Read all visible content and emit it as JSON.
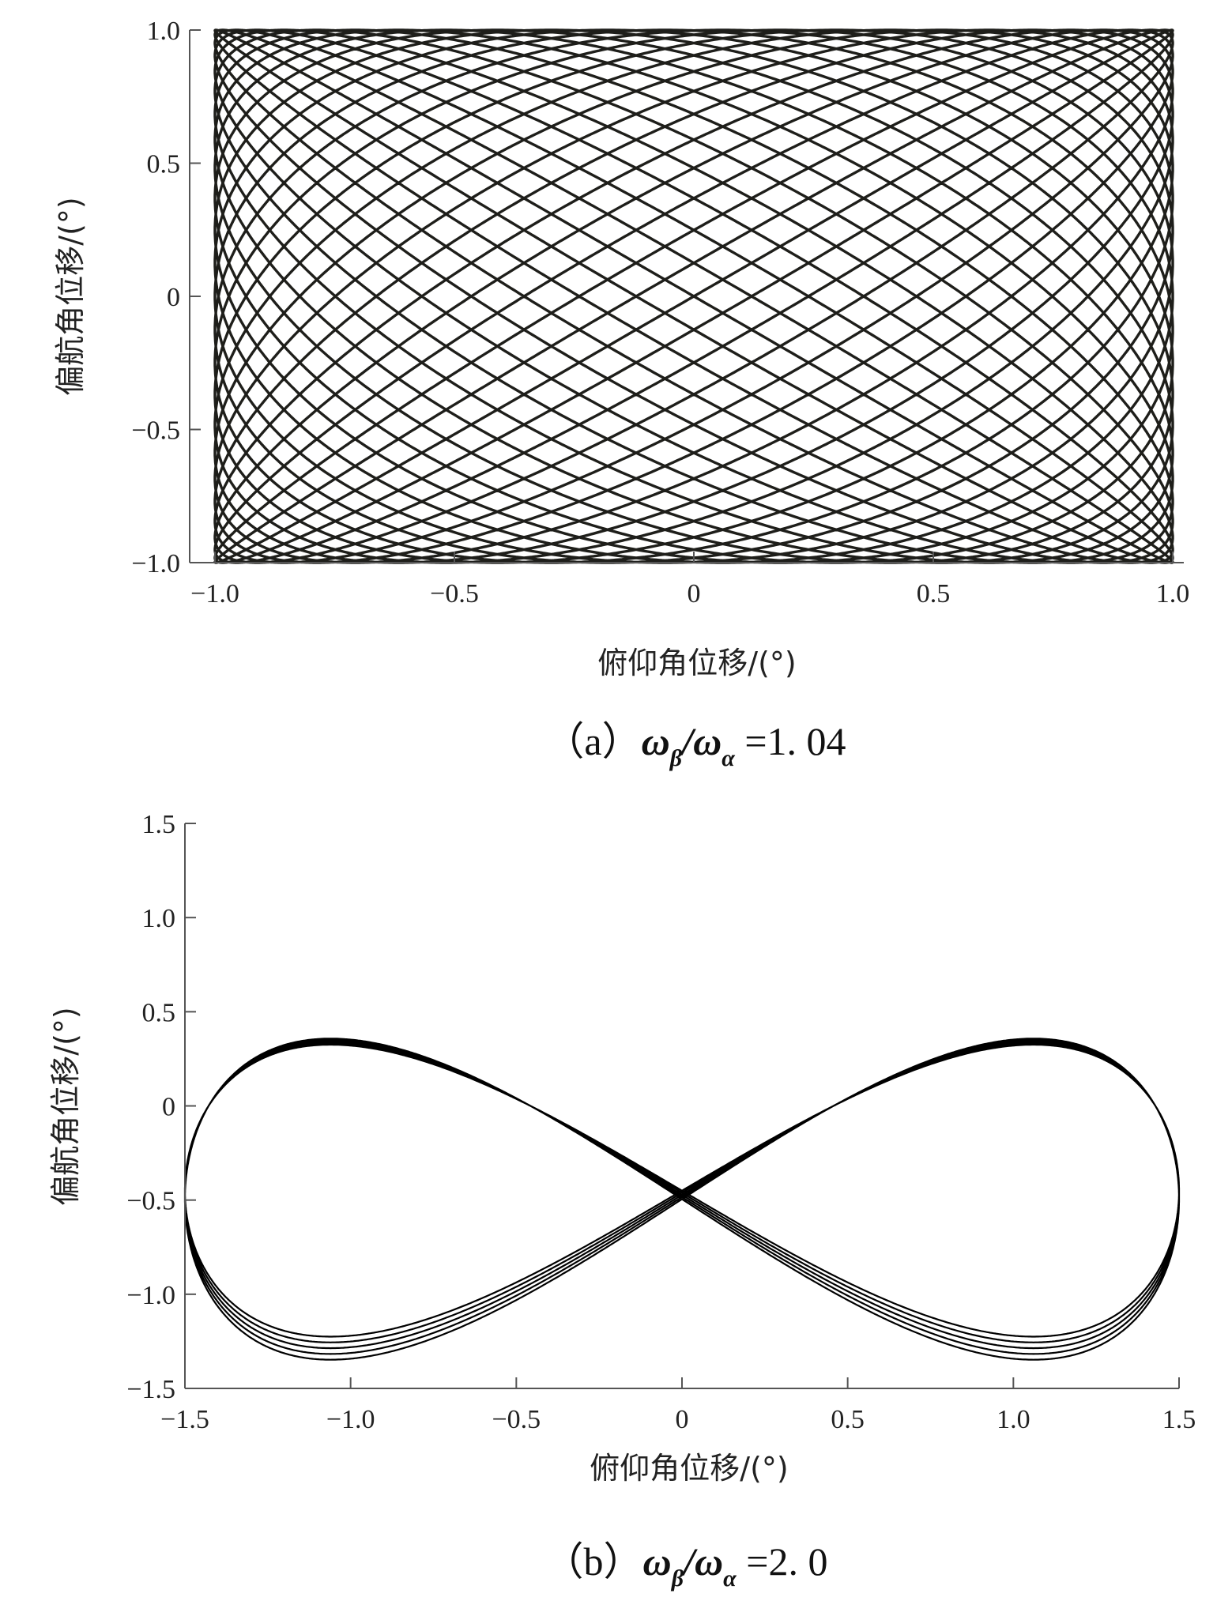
{
  "chart_data": [
    {
      "type": "line",
      "subtype": "parametric-lissajous",
      "xlabel": "俯仰角位移/(°)",
      "ylabel": "偏航角位移/(°)",
      "xlim": [
        -1.0,
        1.0
      ],
      "ylim": [
        -1.0,
        1.0
      ],
      "xticks": [
        "−1.0",
        "−0.5",
        "0",
        "0.5",
        "1.0"
      ],
      "yticks": [
        "1.0",
        "0.5",
        "0",
        "−0.5",
        "−1.0"
      ],
      "frequency_ratio": 1.04,
      "amplitude_x": 1.0,
      "amplitude_y": 1.0,
      "grid": false,
      "line_color": "#1e1e1a",
      "caption": {
        "prefix": "（a）",
        "math_num": "ω",
        "sub_num": "β",
        "slash": "/",
        "math_den": "ω",
        "sub_den": "α",
        "equals": " =1. 04"
      }
    },
    {
      "type": "line",
      "subtype": "parametric-lissajous",
      "xlabel": "俯仰角位移/(°)",
      "ylabel": "偏航角位移/(°)",
      "xlim": [
        -1.5,
        1.5
      ],
      "ylim": [
        -1.5,
        1.5
      ],
      "xticks": [
        "−1.5",
        "−1.0",
        "−0.5",
        "0",
        "0.5",
        "1.0",
        "1.5"
      ],
      "yticks": [
        "1.5",
        "1.0",
        "0.5",
        "0",
        "−0.5",
        "−1.0",
        "−1.5"
      ],
      "frequency_ratio": 2.0,
      "amplitude_x": 1.5,
      "amplitude_y": 1.12,
      "crossing_point": [
        0,
        -0.45
      ],
      "grid": false,
      "line_color": "#000000",
      "caption": {
        "prefix": "（b）",
        "math_num": "ω",
        "sub_num": "β",
        "slash": "/",
        "math_den": "ω",
        "sub_den": "α",
        "equals": " =2. 0"
      }
    }
  ]
}
